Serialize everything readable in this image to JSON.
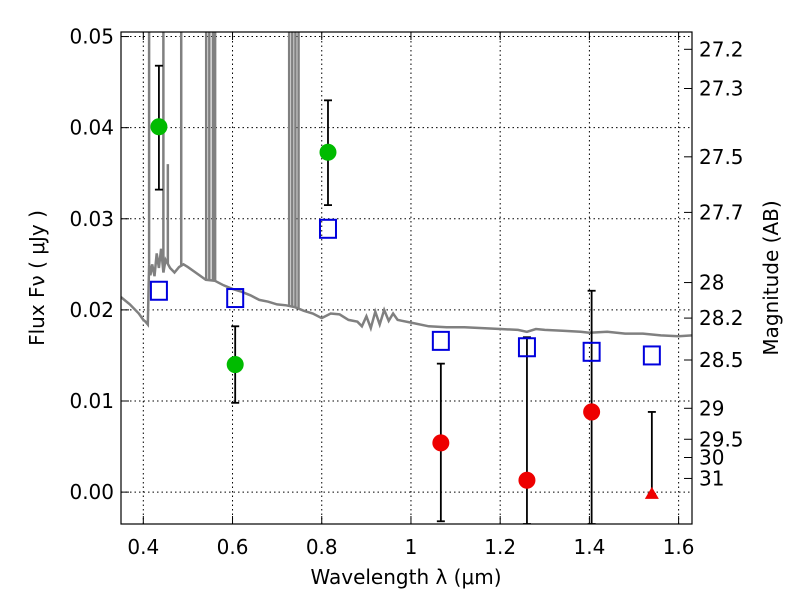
{
  "chart_data": {
    "type": "scatter",
    "xlabel": "Wavelength  λ (μm)",
    "ylabel": "Flux  Fν  ( μJy )",
    "y2label": "Magnitude (AB)",
    "xlim": [
      0.35,
      1.63
    ],
    "ylim": [
      -0.0035,
      0.0505
    ],
    "grid": true,
    "x_ticks": [
      0.4,
      0.6,
      0.8,
      1.0,
      1.2,
      1.4,
      1.6
    ],
    "x_tick_labels": [
      "0.4",
      "0.6",
      "0.8",
      "1",
      "1.2",
      "1.4",
      "1.6"
    ],
    "y_ticks": [
      0.0,
      0.01,
      0.02,
      0.03,
      0.04,
      0.05
    ],
    "y_tick_labels": [
      "0.00",
      "0.01",
      "0.02",
      "0.03",
      "0.04",
      "0.05"
    ],
    "mag_ticks": [
      {
        "label": "27.2",
        "flux": 0.0486
      },
      {
        "label": "27.3",
        "flux": 0.0443
      },
      {
        "label": "27.5",
        "flux": 0.0368
      },
      {
        "label": "27.7",
        "flux": 0.0307
      },
      {
        "label": "28",
        "flux": 0.023
      },
      {
        "label": "28.2",
        "flux": 0.0191
      },
      {
        "label": "28.5",
        "flux": 0.0145
      },
      {
        "label": "29",
        "flux": 0.0092
      },
      {
        "label": "29.5",
        "flux": 0.0058
      },
      {
        "label": "30",
        "flux": 0.0038
      },
      {
        "label": "31",
        "flux": 0.0015
      }
    ],
    "colors": {
      "green": "#00bb00",
      "red": "#ee0000",
      "blue": "#0000dd",
      "model": "#808080",
      "errorbar": "#000000"
    },
    "series": [
      {
        "marker": "circle-green",
        "points": [
          {
            "x": 0.435,
            "y": 0.0401,
            "ylo": 0.0332,
            "yhi": 0.0468
          },
          {
            "x": 0.606,
            "y": 0.014,
            "ylo": 0.0098,
            "yhi": 0.0182
          },
          {
            "x": 0.814,
            "y": 0.0373,
            "ylo": 0.0315,
            "yhi": 0.043
          }
        ]
      },
      {
        "marker": "circle-red",
        "points": [
          {
            "x": 1.067,
            "y": 0.0054,
            "ylo": -0.0032,
            "yhi": 0.0141
          },
          {
            "x": 1.26,
            "y": 0.0013,
            "ylo": -0.0035,
            "yhi": 0.017
          },
          {
            "x": 1.405,
            "y": 0.0088,
            "ylo": -0.0035,
            "yhi": 0.0221
          }
        ]
      },
      {
        "marker": "triangle-red",
        "points": [
          {
            "x": 1.54,
            "y": -0.0002,
            "ylo": -0.0002,
            "yhi": 0.0088
          }
        ]
      },
      {
        "marker": "square-blue",
        "points": [
          {
            "x": 0.435,
            "y": 0.0221
          },
          {
            "x": 0.606,
            "y": 0.0213
          },
          {
            "x": 0.814,
            "y": 0.0289
          },
          {
            "x": 1.067,
            "y": 0.0166
          },
          {
            "x": 1.26,
            "y": 0.0159
          },
          {
            "x": 1.405,
            "y": 0.0154
          },
          {
            "x": 1.54,
            "y": 0.015
          }
        ]
      }
    ],
    "model_spectrum": [
      [
        0.35,
        0.0214
      ],
      [
        0.37,
        0.0206
      ],
      [
        0.39,
        0.0196
      ],
      [
        0.4,
        0.0189
      ],
      [
        0.405,
        0.0187
      ],
      [
        0.41,
        0.0184
      ],
      [
        0.413,
        0.025
      ],
      [
        0.416,
        0.0238
      ],
      [
        0.42,
        0.025
      ],
      [
        0.425,
        0.0237
      ],
      [
        0.43,
        0.0262
      ],
      [
        0.435,
        0.0246
      ],
      [
        0.44,
        0.0267
      ],
      [
        0.445,
        0.0241
      ],
      [
        0.45,
        0.0255
      ],
      [
        0.46,
        0.0246
      ],
      [
        0.47,
        0.0241
      ],
      [
        0.48,
        0.0247
      ],
      [
        0.49,
        0.025
      ],
      [
        0.5,
        0.0247
      ],
      [
        0.52,
        0.024
      ],
      [
        0.54,
        0.0233
      ],
      [
        0.56,
        0.0232
      ],
      [
        0.58,
        0.0227
      ],
      [
        0.6,
        0.0223
      ],
      [
        0.62,
        0.022
      ],
      [
        0.64,
        0.0216
      ],
      [
        0.66,
        0.0211
      ],
      [
        0.68,
        0.0209
      ],
      [
        0.7,
        0.0206
      ],
      [
        0.72,
        0.0205
      ],
      [
        0.74,
        0.0203
      ],
      [
        0.76,
        0.0199
      ],
      [
        0.78,
        0.0196
      ],
      [
        0.8,
        0.0191
      ],
      [
        0.82,
        0.0196
      ],
      [
        0.84,
        0.0195
      ],
      [
        0.86,
        0.0189
      ],
      [
        0.88,
        0.0187
      ],
      [
        0.89,
        0.0182
      ],
      [
        0.9,
        0.0193
      ],
      [
        0.91,
        0.018
      ],
      [
        0.92,
        0.0198
      ],
      [
        0.93,
        0.0184
      ],
      [
        0.94,
        0.02
      ],
      [
        0.95,
        0.0188
      ],
      [
        0.96,
        0.0196
      ],
      [
        0.97,
        0.0189
      ],
      [
        0.98,
        0.0188
      ],
      [
        1.0,
        0.0186
      ],
      [
        1.04,
        0.0182
      ],
      [
        1.08,
        0.0181
      ],
      [
        1.12,
        0.0181
      ],
      [
        1.16,
        0.018
      ],
      [
        1.2,
        0.0179
      ],
      [
        1.24,
        0.0178
      ],
      [
        1.26,
        0.0176
      ],
      [
        1.28,
        0.0179
      ],
      [
        1.3,
        0.0178
      ],
      [
        1.34,
        0.0177
      ],
      [
        1.38,
        0.0176
      ],
      [
        1.4,
        0.0175
      ],
      [
        1.44,
        0.0176
      ],
      [
        1.48,
        0.0174
      ],
      [
        1.52,
        0.0174
      ],
      [
        1.56,
        0.0172
      ],
      [
        1.6,
        0.0171
      ],
      [
        1.63,
        0.0172
      ]
    ],
    "emission_lines": [
      {
        "x": 0.413,
        "y": 0.0505
      },
      {
        "x": 0.445,
        "y": 0.0505
      },
      {
        "x": 0.455,
        "y": 0.036
      },
      {
        "x": 0.485,
        "y": 0.0505
      },
      {
        "x": 0.541,
        "y": 0.0505
      },
      {
        "x": 0.548,
        "y": 0.0505
      },
      {
        "x": 0.556,
        "y": 0.0505
      },
      {
        "x": 0.561,
        "y": 0.0505
      },
      {
        "x": 0.727,
        "y": 0.0505
      },
      {
        "x": 0.734,
        "y": 0.0505
      },
      {
        "x": 0.741,
        "y": 0.0505
      },
      {
        "x": 0.748,
        "y": 0.0505
      }
    ]
  }
}
